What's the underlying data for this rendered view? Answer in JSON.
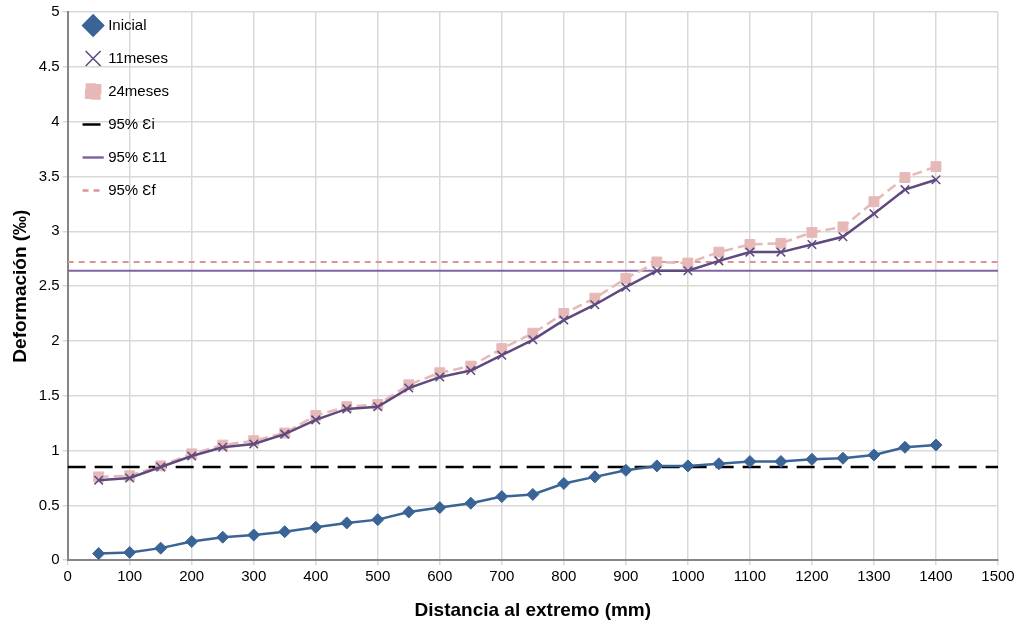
{
  "chart_data": {
    "type": "line",
    "xlabel": "Distancia al extremo (mm)",
    "ylabel": "Deformación (‰)",
    "x": [
      50,
      100,
      150,
      200,
      250,
      300,
      350,
      400,
      450,
      500,
      550,
      600,
      650,
      700,
      750,
      800,
      850,
      900,
      950,
      1000,
      1050,
      1100,
      1150,
      1200,
      1250,
      1300,
      1350,
      1400
    ],
    "series": [
      {
        "name": "Inicial",
        "color": "#3a6496",
        "marker": "diamond",
        "line_style": "solid",
        "values": [
          0.06,
          0.07,
          0.11,
          0.17,
          0.21,
          0.23,
          0.26,
          0.3,
          0.34,
          0.37,
          0.44,
          0.48,
          0.52,
          0.58,
          0.6,
          0.7,
          0.76,
          0.82,
          0.86,
          0.86,
          0.88,
          0.9,
          0.9,
          0.92,
          0.93,
          0.96,
          1.03,
          1.05
        ]
      },
      {
        "name": "11meses",
        "color": "#5e4a7e",
        "marker": "cross",
        "line_style": "solid",
        "values": [
          0.73,
          0.75,
          0.85,
          0.95,
          1.03,
          1.06,
          1.15,
          1.28,
          1.38,
          1.4,
          1.57,
          1.67,
          1.73,
          1.87,
          2.01,
          2.19,
          2.33,
          2.49,
          2.64,
          2.64,
          2.73,
          2.81,
          2.81,
          2.88,
          2.95,
          3.16,
          3.38,
          3.47
        ]
      },
      {
        "name": "24meses",
        "color": "#e6b9b8",
        "marker": "square",
        "line_style": "dashed",
        "values": [
          0.76,
          0.77,
          0.86,
          0.97,
          1.05,
          1.09,
          1.16,
          1.32,
          1.4,
          1.42,
          1.6,
          1.71,
          1.77,
          1.93,
          2.07,
          2.25,
          2.39,
          2.57,
          2.72,
          2.71,
          2.81,
          2.88,
          2.89,
          2.99,
          3.04,
          3.27,
          3.49,
          3.59
        ]
      }
    ],
    "ref_lines": [
      {
        "axis": "y",
        "value": 0.85,
        "label": "95% Ɛi",
        "color": "#000000",
        "line_style": "dashed"
      },
      {
        "axis": "y",
        "value": 2.64,
        "label": "95% Ɛ11",
        "color": "#8064a2",
        "line_style": "solid"
      },
      {
        "axis": "y",
        "value": 2.72,
        "label": "95% Ɛf",
        "color": "#d99694",
        "line_style": "dotted"
      }
    ],
    "xlim": [
      0,
      1500
    ],
    "xticks": [
      0,
      100,
      200,
      300,
      400,
      500,
      600,
      700,
      800,
      900,
      1000,
      1100,
      1200,
      1300,
      1400,
      1500
    ],
    "ylim": [
      0,
      5
    ],
    "yticks": [
      0,
      0.5,
      1,
      1.5,
      2,
      2.5,
      3,
      3.5,
      4,
      4.5,
      5
    ],
    "grid": true,
    "legend": "top left"
  }
}
